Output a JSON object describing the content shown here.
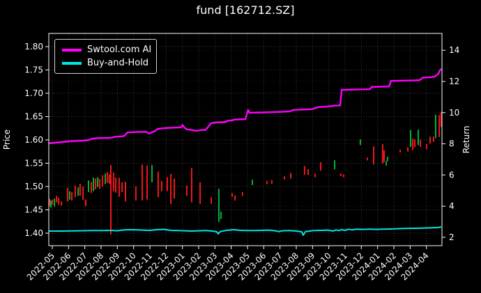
{
  "title": "fund [162712.SZ]",
  "legend": {
    "items": [
      {
        "label": "Swtool.com AI",
        "color": "#ff00ff"
      },
      {
        "label": "Buy-and-Hold",
        "color": "#00e8e8"
      }
    ]
  },
  "chart_data": {
    "type": "line+candlestick",
    "title": "fund [162712.SZ]",
    "ylabel_left": "Price",
    "ylabel_right": "Return",
    "x_unit": "months since 2022-05 tick",
    "x_tick_labels": [
      "2022-05",
      "2022-06",
      "2022-07",
      "2022-08",
      "2022-09",
      "2022-10",
      "2022-11",
      "2022-12",
      "2023-01",
      "2023-02",
      "2023-03",
      "2023-04",
      "2023-05",
      "2023-06",
      "2023-07",
      "2023-08",
      "2023-09",
      "2023-10",
      "2023-11",
      "2023-12",
      "2024-01",
      "2024-02",
      "2024-03",
      "2024-04"
    ],
    "price_ticks": [
      1.4,
      1.45,
      1.5,
      1.55,
      1.6,
      1.65,
      1.7,
      1.75,
      1.8
    ],
    "return_ticks": [
      2,
      4,
      6,
      8,
      10,
      12,
      14
    ],
    "price_lim": [
      1.373,
      1.828
    ],
    "return_lim": [
      1.46,
      15.08
    ],
    "grid": true,
    "legend_position": "upper left",
    "series": [
      {
        "name": "Swtool.com AI",
        "color": "#ff00ff",
        "axis": "price",
        "points": [
          [
            -0.21,
            1.5925
          ],
          [
            0.21,
            1.594
          ],
          [
            0.64,
            1.5955
          ],
          [
            1.07,
            1.597
          ],
          [
            1.59,
            1.598
          ],
          [
            1.93,
            1.5985
          ],
          [
            2.27,
            1.6
          ],
          [
            2.44,
            1.6025
          ],
          [
            2.7,
            1.6035
          ],
          [
            3.0,
            1.604
          ],
          [
            3.3,
            1.604
          ],
          [
            3.56,
            1.6045
          ],
          [
            3.73,
            1.6055
          ],
          [
            3.9,
            1.607
          ],
          [
            4.16,
            1.6075
          ],
          [
            4.41,
            1.608
          ],
          [
            4.63,
            1.616
          ],
          [
            4.93,
            1.6165
          ],
          [
            5.36,
            1.617
          ],
          [
            5.79,
            1.617
          ],
          [
            5.96,
            1.6135
          ],
          [
            6.13,
            1.6165
          ],
          [
            6.3,
            1.6185
          ],
          [
            6.47,
            1.6235
          ],
          [
            6.86,
            1.625
          ],
          [
            7.29,
            1.626
          ],
          [
            7.71,
            1.6265
          ],
          [
            7.93,
            1.627
          ],
          [
            8.01,
            1.632
          ],
          [
            8.1,
            1.627
          ],
          [
            8.27,
            1.6225
          ],
          [
            8.53,
            1.6215
          ],
          [
            8.79,
            1.62
          ],
          [
            8.96,
            1.6195
          ],
          [
            9.13,
            1.621
          ],
          [
            9.43,
            1.6215
          ],
          [
            9.77,
            1.636
          ],
          [
            10.07,
            1.6375
          ],
          [
            10.41,
            1.638
          ],
          [
            10.67,
            1.638
          ],
          [
            10.76,
            1.641
          ],
          [
            11.01,
            1.6415
          ],
          [
            11.19,
            1.6435
          ],
          [
            11.57,
            1.644
          ],
          [
            11.87,
            1.6445
          ],
          [
            12.04,
            1.6645
          ],
          [
            12.13,
            1.658
          ],
          [
            12.43,
            1.6585
          ],
          [
            13.07,
            1.659
          ],
          [
            13.93,
            1.66
          ],
          [
            14.57,
            1.661
          ],
          [
            14.87,
            1.6645
          ],
          [
            15.43,
            1.665
          ],
          [
            15.99,
            1.666
          ],
          [
            16.29,
            1.67
          ],
          [
            16.93,
            1.6715
          ],
          [
            17.36,
            1.6735
          ],
          [
            17.7,
            1.674
          ],
          [
            17.79,
            1.7075
          ],
          [
            18.0,
            1.7075
          ],
          [
            18.64,
            1.708
          ],
          [
            19.29,
            1.7085
          ],
          [
            19.54,
            1.709
          ],
          [
            19.63,
            1.7135
          ],
          [
            20.14,
            1.714
          ],
          [
            20.7,
            1.7145
          ],
          [
            20.83,
            1.7265
          ],
          [
            21.43,
            1.727
          ],
          [
            22.16,
            1.7275
          ],
          [
            22.59,
            1.728
          ],
          [
            22.76,
            1.7335
          ],
          [
            23.19,
            1.734
          ],
          [
            23.49,
            1.7355
          ],
          [
            23.61,
            1.738
          ],
          [
            23.74,
            1.742
          ],
          [
            23.83,
            1.749
          ],
          [
            23.91,
            1.7525
          ]
        ]
      },
      {
        "name": "Buy-and-Hold",
        "color": "#00e8e8",
        "axis": "price",
        "points": [
          [
            -0.21,
            1.4045
          ],
          [
            0.64,
            1.4045
          ],
          [
            1.5,
            1.405
          ],
          [
            2.36,
            1.4055
          ],
          [
            3.21,
            1.4055
          ],
          [
            3.64,
            1.406
          ],
          [
            3.99,
            1.405
          ],
          [
            4.29,
            1.4065
          ],
          [
            4.71,
            1.4075
          ],
          [
            5.14,
            1.407
          ],
          [
            5.57,
            1.4065
          ],
          [
            6.0,
            1.406
          ],
          [
            6.43,
            1.4075
          ],
          [
            6.86,
            1.408
          ],
          [
            7.29,
            1.406
          ],
          [
            7.71,
            1.4055
          ],
          [
            8.14,
            1.405
          ],
          [
            8.57,
            1.4045
          ],
          [
            9.0,
            1.405
          ],
          [
            9.43,
            1.4055
          ],
          [
            9.86,
            1.4045
          ],
          [
            10.11,
            1.403
          ],
          [
            10.2,
            1.3985
          ],
          [
            10.33,
            1.4035
          ],
          [
            10.71,
            1.406
          ],
          [
            11.14,
            1.4075
          ],
          [
            11.57,
            1.406
          ],
          [
            12.0,
            1.4055
          ],
          [
            12.43,
            1.4055
          ],
          [
            12.86,
            1.406
          ],
          [
            13.29,
            1.4065
          ],
          [
            13.71,
            1.405
          ],
          [
            13.93,
            1.4035
          ],
          [
            14.14,
            1.405
          ],
          [
            14.57,
            1.4055
          ],
          [
            15.0,
            1.4045
          ],
          [
            15.34,
            1.403
          ],
          [
            15.43,
            1.3955
          ],
          [
            15.56,
            1.4035
          ],
          [
            16.07,
            1.4055
          ],
          [
            16.5,
            1.406
          ],
          [
            16.93,
            1.4065
          ],
          [
            17.27,
            1.4045
          ],
          [
            17.44,
            1.407
          ],
          [
            17.61,
            1.4055
          ],
          [
            17.79,
            1.4075
          ],
          [
            18.0,
            1.406
          ],
          [
            18.21,
            1.4085
          ],
          [
            18.43,
            1.407
          ],
          [
            18.73,
            1.4085
          ],
          [
            19.07,
            1.408
          ],
          [
            19.5,
            1.4085
          ],
          [
            19.93,
            1.408
          ],
          [
            20.36,
            1.4085
          ],
          [
            20.79,
            1.409
          ],
          [
            21.21,
            1.4095
          ],
          [
            21.64,
            1.41
          ],
          [
            22.07,
            1.4105
          ],
          [
            22.5,
            1.4105
          ],
          [
            22.93,
            1.411
          ],
          [
            23.36,
            1.4115
          ],
          [
            23.7,
            1.412
          ],
          [
            23.91,
            1.4135
          ]
        ]
      }
    ],
    "candles": [
      [
        -0.17,
        1.459,
        1.474,
        "r"
      ],
      [
        -0.09,
        1.455,
        1.47,
        "g"
      ],
      [
        0.0,
        1.461,
        1.471,
        "r"
      ],
      [
        0.13,
        1.457,
        1.474,
        "g"
      ],
      [
        0.26,
        1.466,
        1.48,
        "r"
      ],
      [
        0.39,
        1.461,
        1.476,
        "r"
      ],
      [
        0.56,
        1.459,
        1.468,
        "r"
      ],
      [
        0.94,
        1.468,
        1.497,
        "r"
      ],
      [
        1.07,
        1.472,
        1.49,
        "g"
      ],
      [
        1.2,
        1.47,
        1.488,
        "r"
      ],
      [
        1.41,
        1.477,
        1.502,
        "r"
      ],
      [
        1.59,
        1.48,
        1.498,
        "g"
      ],
      [
        1.71,
        1.48,
        1.506,
        "r"
      ],
      [
        1.89,
        1.471,
        1.5,
        "r"
      ],
      [
        2.06,
        1.458,
        1.472,
        "r"
      ],
      [
        2.23,
        1.488,
        1.513,
        "g"
      ],
      [
        2.4,
        1.486,
        1.51,
        "r"
      ],
      [
        2.53,
        1.49,
        1.519,
        "g"
      ],
      [
        2.66,
        1.494,
        1.517,
        "r"
      ],
      [
        2.79,
        1.499,
        1.52,
        "g"
      ],
      [
        2.91,
        1.495,
        1.516,
        "r"
      ],
      [
        3.09,
        1.5,
        1.524,
        "r"
      ],
      [
        3.26,
        1.505,
        1.528,
        "g"
      ],
      [
        3.39,
        1.508,
        1.531,
        "r"
      ],
      [
        3.51,
        1.506,
        1.526,
        "r"
      ],
      [
        3.6,
        1.397,
        1.546,
        "r"
      ],
      [
        3.77,
        1.49,
        1.53,
        "r"
      ],
      [
        3.9,
        1.487,
        1.519,
        "r"
      ],
      [
        4.11,
        1.478,
        1.519,
        "r"
      ],
      [
        4.29,
        1.488,
        1.509,
        "r"
      ],
      [
        4.5,
        1.468,
        1.51,
        "r"
      ],
      [
        5.14,
        1.47,
        1.5,
        "r"
      ],
      [
        5.53,
        1.47,
        1.547,
        "r"
      ],
      [
        5.83,
        1.472,
        1.545,
        "r"
      ],
      [
        6.13,
        1.509,
        1.546,
        "g"
      ],
      [
        6.51,
        1.477,
        1.532,
        "r"
      ],
      [
        6.73,
        1.49,
        1.512,
        "r"
      ],
      [
        7.07,
        1.49,
        1.52,
        "r"
      ],
      [
        7.29,
        1.462,
        1.527,
        "r"
      ],
      [
        7.5,
        1.474,
        1.517,
        "r"
      ],
      [
        8.27,
        1.48,
        1.502,
        "r"
      ],
      [
        8.57,
        1.466,
        1.54,
        "r"
      ],
      [
        9.09,
        1.463,
        1.509,
        "r"
      ],
      [
        9.77,
        1.463,
        1.477,
        "r"
      ],
      [
        10.24,
        1.424,
        1.495,
        "g"
      ],
      [
        10.37,
        1.43,
        1.446,
        "g"
      ],
      [
        11.06,
        1.478,
        1.486,
        "r"
      ],
      [
        11.23,
        1.47,
        1.481,
        "r"
      ],
      [
        11.7,
        1.48,
        1.488,
        "r"
      ],
      [
        12.3,
        1.503,
        1.515,
        "g"
      ],
      [
        13.2,
        1.505,
        1.512,
        "r"
      ],
      [
        13.5,
        1.506,
        1.514,
        "r"
      ],
      [
        14.27,
        1.515,
        1.522,
        "r"
      ],
      [
        14.66,
        1.517,
        1.529,
        "r"
      ],
      [
        15.51,
        1.525,
        1.544,
        "r"
      ],
      [
        15.73,
        1.525,
        1.537,
        "r"
      ],
      [
        16.16,
        1.52,
        1.528,
        "r"
      ],
      [
        16.5,
        1.534,
        1.552,
        "r"
      ],
      [
        17.36,
        1.537,
        1.5565,
        "g"
      ],
      [
        17.74,
        1.522,
        1.528,
        "r"
      ],
      [
        17.91,
        1.52,
        1.526,
        "r"
      ],
      [
        18.94,
        1.589,
        1.601,
        "g"
      ],
      [
        19.37,
        1.556,
        1.562,
        "r"
      ],
      [
        19.76,
        1.547,
        1.586,
        "r"
      ],
      [
        20.31,
        1.549,
        1.591,
        "r"
      ],
      [
        20.4,
        1.553,
        1.578,
        "r"
      ],
      [
        20.53,
        1.545,
        1.555,
        "g"
      ],
      [
        20.61,
        1.5545,
        1.564,
        "g"
      ],
      [
        21.39,
        1.573,
        1.579,
        "r"
      ],
      [
        21.86,
        1.575,
        1.584,
        "r"
      ],
      [
        22.03,
        1.585,
        1.621,
        "g"
      ],
      [
        22.16,
        1.578,
        1.603,
        "r"
      ],
      [
        22.29,
        1.584,
        1.601,
        "r"
      ],
      [
        22.5,
        1.589,
        1.622,
        "g"
      ],
      [
        22.63,
        1.585,
        1.601,
        "r"
      ],
      [
        23.01,
        1.58,
        1.591,
        "r"
      ],
      [
        23.23,
        1.592,
        1.607,
        "r"
      ],
      [
        23.44,
        1.596,
        1.607,
        "r"
      ],
      [
        23.57,
        1.604,
        1.654,
        "g"
      ],
      [
        23.79,
        1.606,
        1.653,
        "r"
      ],
      [
        23.91,
        1.628,
        1.66,
        "r"
      ]
    ],
    "candle_colors": {
      "r": "#f01818",
      "g": "#00b23c"
    }
  }
}
